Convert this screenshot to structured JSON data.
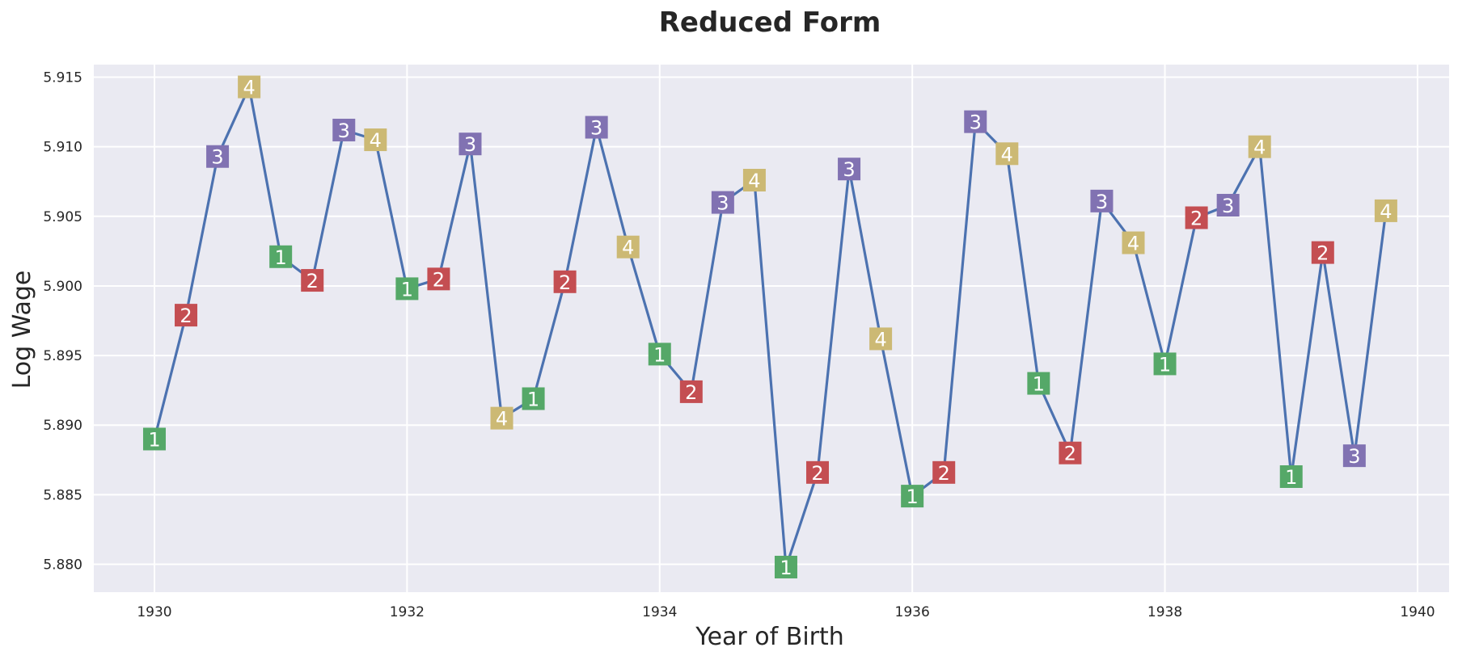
{
  "chart_data": {
    "type": "line",
    "title": "Reduced Form",
    "xlabel": "Year of Birth",
    "ylabel": "Log Wage",
    "xlim": [
      1929.52,
      1940.25
    ],
    "ylim": [
      5.878,
      5.9159
    ],
    "xticks": [
      1930,
      1932,
      1934,
      1936,
      1938,
      1940
    ],
    "yticks": [
      5.88,
      5.885,
      5.89,
      5.895,
      5.9,
      5.905,
      5.91,
      5.915
    ],
    "xtick_labels": [
      "1930",
      "1932",
      "1934",
      "1936",
      "1938",
      "1940"
    ],
    "ytick_labels": [
      "5.880",
      "5.885",
      "5.890",
      "5.895",
      "5.900",
      "5.905",
      "5.910",
      "5.915"
    ],
    "grid": true,
    "line_color": "#4C72B0",
    "background_color": "#EAEAF2",
    "quarter_colors": {
      "1": "#55A868",
      "2": "#C44E52",
      "3": "#8172B2",
      "4": "#CCB974"
    },
    "series": [
      {
        "points": [
          {
            "x": 1930.0,
            "y": 5.889,
            "q": "1"
          },
          {
            "x": 1930.25,
            "y": 5.8979,
            "q": "2"
          },
          {
            "x": 1930.5,
            "y": 5.9093,
            "q": "3"
          },
          {
            "x": 1930.75,
            "y": 5.9143,
            "q": "4"
          },
          {
            "x": 1931.0,
            "y": 5.9021,
            "q": "1"
          },
          {
            "x": 1931.25,
            "y": 5.9004,
            "q": "2"
          },
          {
            "x": 1931.5,
            "y": 5.9112,
            "q": "3"
          },
          {
            "x": 1931.75,
            "y": 5.9105,
            "q": "4"
          },
          {
            "x": 1932.0,
            "y": 5.8998,
            "q": "1"
          },
          {
            "x": 1932.25,
            "y": 5.9005,
            "q": "2"
          },
          {
            "x": 1932.5,
            "y": 5.9102,
            "q": "3"
          },
          {
            "x": 1932.75,
            "y": 5.8905,
            "q": "4"
          },
          {
            "x": 1933.0,
            "y": 5.8919,
            "q": "1"
          },
          {
            "x": 1933.25,
            "y": 5.9003,
            "q": "2"
          },
          {
            "x": 1933.5,
            "y": 5.9114,
            "q": "3"
          },
          {
            "x": 1933.75,
            "y": 5.9028,
            "q": "4"
          },
          {
            "x": 1934.0,
            "y": 5.8951,
            "q": "1"
          },
          {
            "x": 1934.25,
            "y": 5.8924,
            "q": "2"
          },
          {
            "x": 1934.5,
            "y": 5.906,
            "q": "3"
          },
          {
            "x": 1934.75,
            "y": 5.9076,
            "q": "4"
          },
          {
            "x": 1935.0,
            "y": 5.8798,
            "q": "1"
          },
          {
            "x": 1935.25,
            "y": 5.8866,
            "q": "2"
          },
          {
            "x": 1935.5,
            "y": 5.9084,
            "q": "3"
          },
          {
            "x": 1935.75,
            "y": 5.8962,
            "q": "4"
          },
          {
            "x": 1936.0,
            "y": 5.8849,
            "q": "1"
          },
          {
            "x": 1936.25,
            "y": 5.8866,
            "q": "2"
          },
          {
            "x": 1936.5,
            "y": 5.9118,
            "q": "3"
          },
          {
            "x": 1936.75,
            "y": 5.9095,
            "q": "4"
          },
          {
            "x": 1937.0,
            "y": 5.893,
            "q": "1"
          },
          {
            "x": 1937.25,
            "y": 5.888,
            "q": "2"
          },
          {
            "x": 1937.5,
            "y": 5.9061,
            "q": "3"
          },
          {
            "x": 1937.75,
            "y": 5.9031,
            "q": "4"
          },
          {
            "x": 1938.0,
            "y": 5.8944,
            "q": "1"
          },
          {
            "x": 1938.25,
            "y": 5.9049,
            "q": "2"
          },
          {
            "x": 1938.5,
            "y": 5.9058,
            "q": "3"
          },
          {
            "x": 1938.75,
            "y": 5.91,
            "q": "4"
          },
          {
            "x": 1939.0,
            "y": 5.8863,
            "q": "1"
          },
          {
            "x": 1939.25,
            "y": 5.9024,
            "q": "2"
          },
          {
            "x": 1939.5,
            "y": 5.8878,
            "q": "3"
          },
          {
            "x": 1939.75,
            "y": 5.9054,
            "q": "4"
          }
        ]
      }
    ]
  }
}
